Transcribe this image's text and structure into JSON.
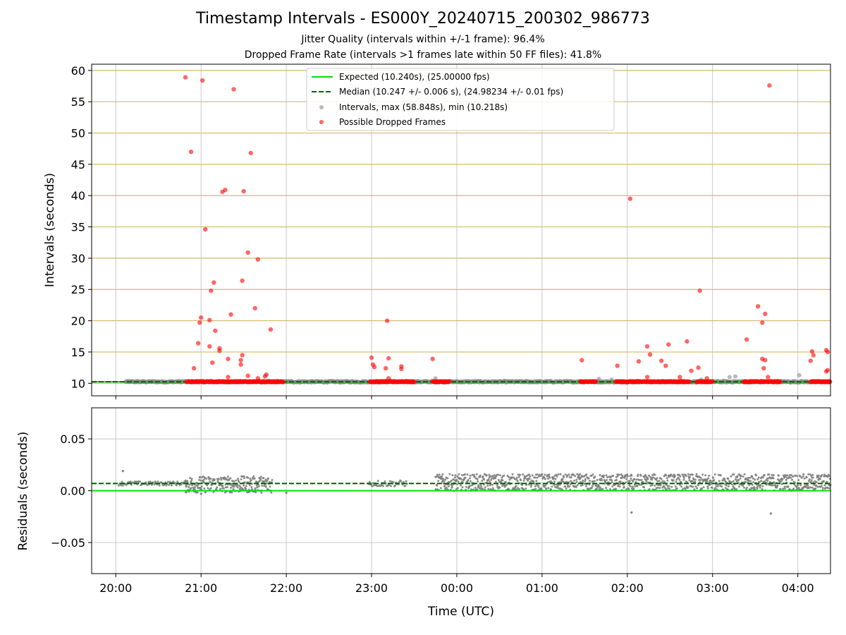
{
  "title": "Timestamp Intervals - ES000Y_20240715_200302_986773",
  "subtitle_lines": [
    "Jitter Quality (intervals within +/-1 frame): 96.4%",
    "Dropped Frame Rate (intervals >1 frames late within 50 FF files): 41.8%"
  ],
  "colors": {
    "expected": "#00e000",
    "median": "#006400",
    "intervals": "#808080",
    "dropped": "#ff0000",
    "hgrid_top": "#d4b86a",
    "grid": "#c8c8c8"
  },
  "chart_data": [
    {
      "type": "scatter",
      "ylabel": "Intervals (seconds)",
      "xlim": [
        "19:43",
        "04:23"
      ],
      "ylim": [
        8,
        61
      ],
      "yticks": [
        10,
        15,
        20,
        25,
        30,
        35,
        40,
        45,
        50,
        55,
        60
      ],
      "grid": true,
      "legend_position": "top-center",
      "legend": [
        "Expected (10.240s), (25.00000 fps)",
        "Median (10.247 +/- 0.006 s), (24.98234 +/- 0.01 fps)",
        "Intervals, max (58.848s), min (10.218s)",
        "Possible Dropped Frames"
      ],
      "expected_y": 10.24,
      "median_y": 10.247,
      "interval_segments": [
        [
          "20:07",
          "23:45"
        ],
        [
          "23:45",
          "04:23"
        ]
      ],
      "interval_extra_points": [
        {
          "x": "23:45",
          "y": 10.8
        },
        {
          "x": "01:40",
          "y": 10.7
        },
        {
          "x": "01:49",
          "y": 10.6
        },
        {
          "x": "02:52",
          "y": 10.6
        },
        {
          "x": "03:12",
          "y": 11.0
        },
        {
          "x": "03:16",
          "y": 11.1
        },
        {
          "x": "04:01",
          "y": 11.3
        }
      ],
      "dropped_segments": [
        [
          "20:50",
          "21:58"
        ],
        [
          "22:59",
          "23:30"
        ],
        [
          "23:43",
          "23:55"
        ],
        [
          "01:27",
          "01:38"
        ],
        [
          "01:52",
          "02:44"
        ],
        [
          "02:49",
          "03:00"
        ],
        [
          "03:22",
          "03:48"
        ],
        [
          "04:09",
          "04:23"
        ]
      ],
      "dropped_points": [
        {
          "x": "20:49",
          "y": 58.9
        },
        {
          "x": "21:01",
          "y": 58.4
        },
        {
          "x": "21:23",
          "y": 57.0
        },
        {
          "x": "20:53",
          "y": 47.0
        },
        {
          "x": "21:35",
          "y": 46.8
        },
        {
          "x": "21:15",
          "y": 40.6
        },
        {
          "x": "21:17",
          "y": 40.9
        },
        {
          "x": "21:30",
          "y": 40.7
        },
        {
          "x": "21:03",
          "y": 34.6
        },
        {
          "x": "21:33",
          "y": 30.9
        },
        {
          "x": "21:40",
          "y": 29.8
        },
        {
          "x": "21:29",
          "y": 26.4
        },
        {
          "x": "21:09",
          "y": 26.1
        },
        {
          "x": "21:07",
          "y": 24.8
        },
        {
          "x": "21:38",
          "y": 22.0
        },
        {
          "x": "21:21",
          "y": 21.0
        },
        {
          "x": "21:00",
          "y": 20.5
        },
        {
          "x": "20:59",
          "y": 19.7
        },
        {
          "x": "21:06",
          "y": 20.1
        },
        {
          "x": "21:10",
          "y": 18.4
        },
        {
          "x": "21:49",
          "y": 18.6
        },
        {
          "x": "20:58",
          "y": 16.4
        },
        {
          "x": "21:06",
          "y": 15.9
        },
        {
          "x": "21:13",
          "y": 15.6
        },
        {
          "x": "21:13",
          "y": 15.2
        },
        {
          "x": "21:29",
          "y": 14.5
        },
        {
          "x": "21:19",
          "y": 13.9
        },
        {
          "x": "21:28",
          "y": 13.7
        },
        {
          "x": "21:08",
          "y": 13.3
        },
        {
          "x": "21:28",
          "y": 13.0
        },
        {
          "x": "20:55",
          "y": 12.4
        },
        {
          "x": "21:33",
          "y": 11.2
        },
        {
          "x": "21:45",
          "y": 11.1
        },
        {
          "x": "21:46",
          "y": 11.4
        },
        {
          "x": "21:19",
          "y": 11.0
        },
        {
          "x": "21:40",
          "y": 10.8
        },
        {
          "x": "23:00",
          "y": 14.1
        },
        {
          "x": "23:01",
          "y": 13.0
        },
        {
          "x": "23:02",
          "y": 12.6
        },
        {
          "x": "23:11",
          "y": 20.0
        },
        {
          "x": "23:12",
          "y": 14.0
        },
        {
          "x": "23:10",
          "y": 12.4
        },
        {
          "x": "23:21",
          "y": 12.7
        },
        {
          "x": "23:21",
          "y": 12.3
        },
        {
          "x": "23:12",
          "y": 10.8
        },
        {
          "x": "23:43",
          "y": 13.9
        },
        {
          "x": "01:28",
          "y": 13.7
        },
        {
          "x": "01:53",
          "y": 12.8
        },
        {
          "x": "02:02",
          "y": 39.5
        },
        {
          "x": "02:08",
          "y": 13.5
        },
        {
          "x": "02:14",
          "y": 15.9
        },
        {
          "x": "02:16",
          "y": 14.6
        },
        {
          "x": "02:14",
          "y": 11.0
        },
        {
          "x": "02:24",
          "y": 13.6
        },
        {
          "x": "02:27",
          "y": 12.8
        },
        {
          "x": "02:29",
          "y": 16.2
        },
        {
          "x": "02:37",
          "y": 11.0
        },
        {
          "x": "02:42",
          "y": 16.7
        },
        {
          "x": "02:45",
          "y": 12.0
        },
        {
          "x": "02:50",
          "y": 12.5
        },
        {
          "x": "02:51",
          "y": 24.8
        },
        {
          "x": "02:56",
          "y": 10.8
        },
        {
          "x": "03:24",
          "y": 17.0
        },
        {
          "x": "03:32",
          "y": 22.3
        },
        {
          "x": "03:35",
          "y": 19.7
        },
        {
          "x": "03:37",
          "y": 21.1
        },
        {
          "x": "03:35",
          "y": 13.9
        },
        {
          "x": "03:37",
          "y": 13.7
        },
        {
          "x": "03:36",
          "y": 12.4
        },
        {
          "x": "03:39",
          "y": 11.0
        },
        {
          "x": "03:40",
          "y": 57.6
        },
        {
          "x": "04:09",
          "y": 13.6
        },
        {
          "x": "04:10",
          "y": 15.1
        },
        {
          "x": "04:11",
          "y": 14.5
        },
        {
          "x": "04:20",
          "y": 15.3
        },
        {
          "x": "04:21",
          "y": 15.0
        },
        {
          "x": "04:20",
          "y": 11.9
        },
        {
          "x": "04:21",
          "y": 12.1
        }
      ]
    },
    {
      "type": "scatter",
      "xlabel": "Time (UTC)",
      "ylabel": "Residuals (seconds)",
      "xlim": [
        "19:43",
        "04:23"
      ],
      "ylim": [
        -0.08,
        0.08
      ],
      "yticks": [
        0.05,
        0.0,
        -0.05
      ],
      "ytick_labels": [
        "0.05",
        "0.00",
        "−0.05"
      ],
      "xticks": [
        "20:00",
        "21:00",
        "22:00",
        "23:00",
        "00:00",
        "01:00",
        "02:00",
        "03:00",
        "04:00"
      ],
      "grid": true,
      "expected_y": 0.0,
      "median_y": 0.007,
      "residual_bands": [
        {
          "from": "20:02",
          "to": "20:50",
          "center": 0.007,
          "spread": 0.002
        },
        {
          "from": "20:49",
          "to": "21:50",
          "center": 0.006,
          "spread": 0.008
        },
        {
          "from": "22:58",
          "to": "23:25",
          "center": 0.007,
          "spread": 0.003
        },
        {
          "from": "23:45",
          "to": "04:23",
          "center": 0.008,
          "spread": 0.008
        }
      ],
      "residual_outliers": [
        {
          "x": "20:05",
          "y": 0.019
        },
        {
          "x": "21:00",
          "y": -0.003
        },
        {
          "x": "22:00",
          "y": -0.002
        },
        {
          "x": "02:03",
          "y": -0.021
        },
        {
          "x": "03:41",
          "y": -0.022
        }
      ]
    }
  ]
}
